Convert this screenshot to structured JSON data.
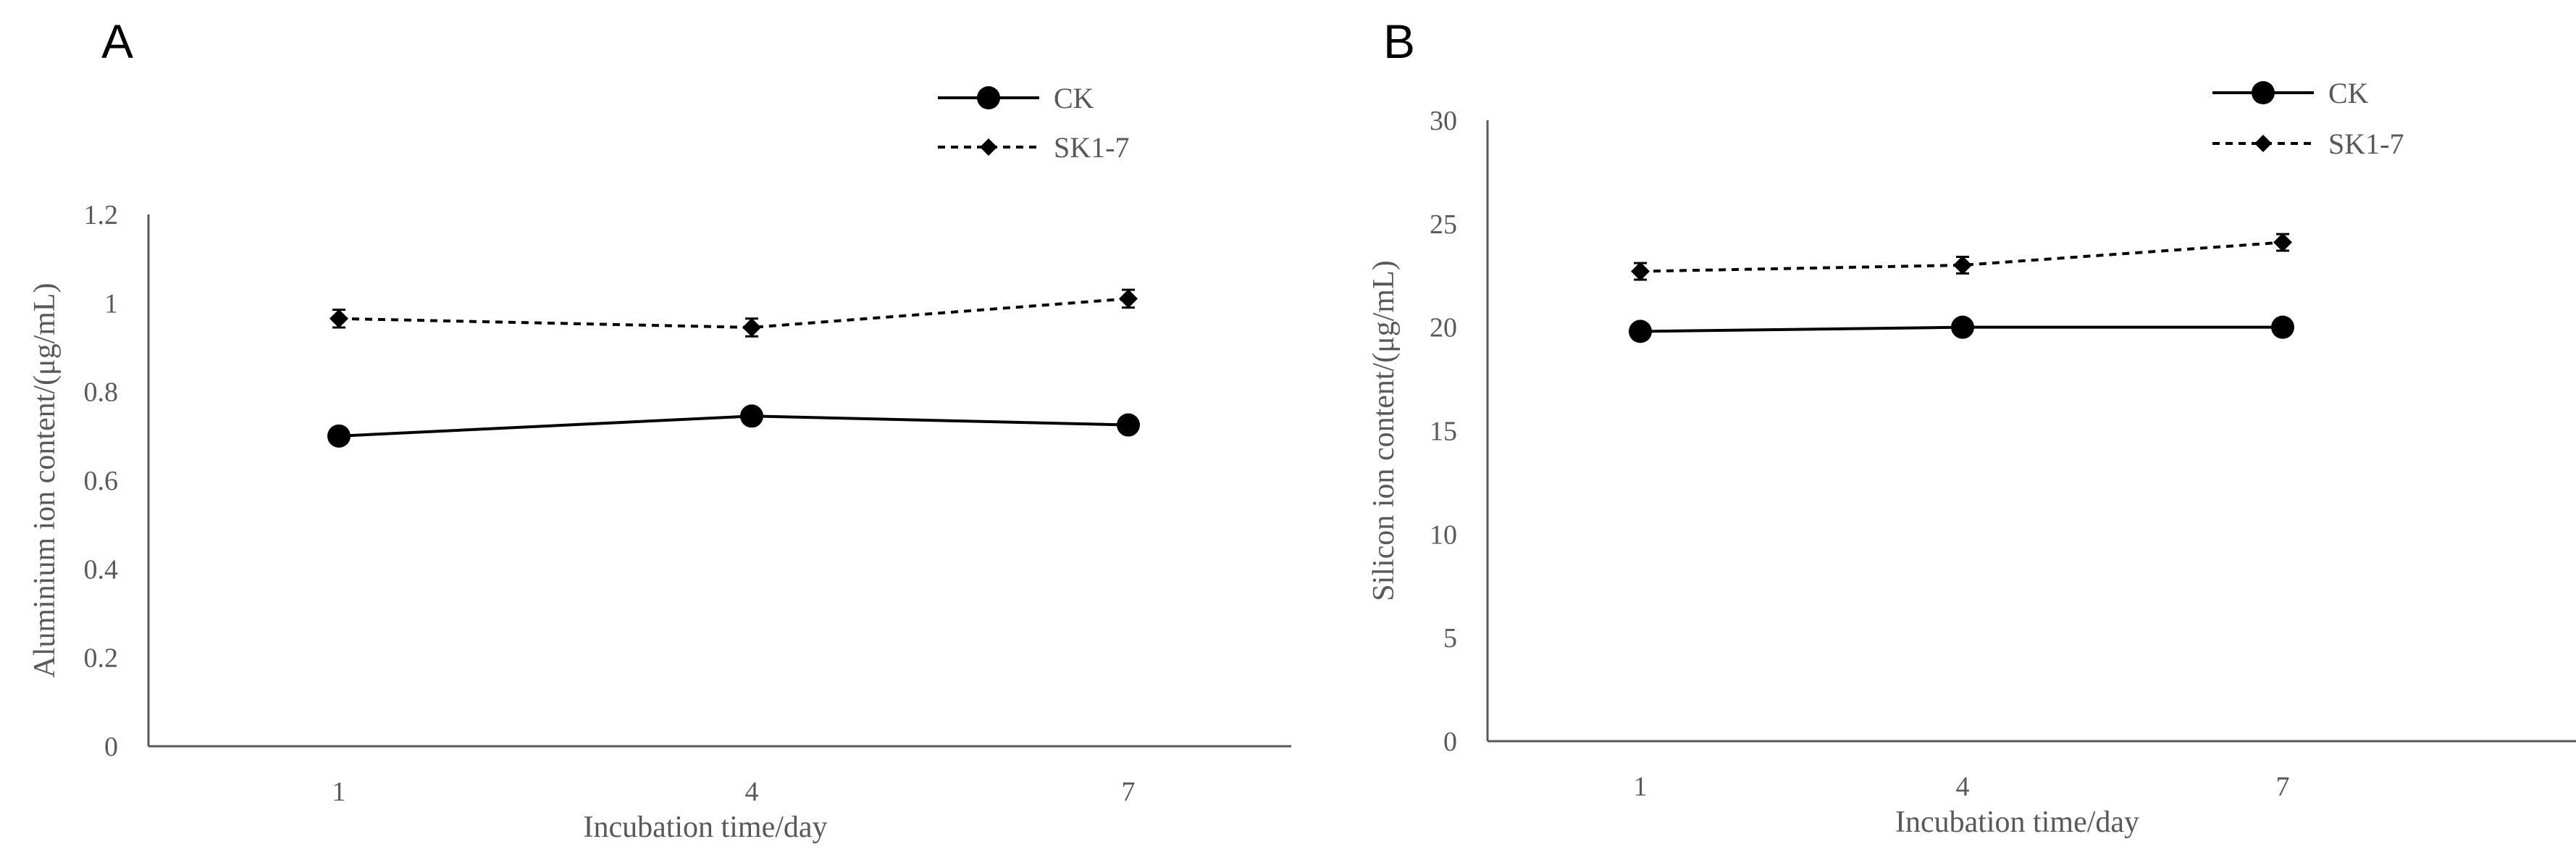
{
  "chart_data": [
    {
      "panel_label": "A",
      "type": "line",
      "xlabel": "Incubation time/day",
      "ylabel": "Aluminium ion content/(μg/mL)",
      "categories": [
        "1",
        "4",
        "7"
      ],
      "ylim": [
        0,
        1.2
      ],
      "yticks": [
        "0",
        "0.2",
        "0.4",
        "0.6",
        "0.8",
        "1",
        "1.2"
      ],
      "legend_position": "top-right",
      "series": [
        {
          "name": "CK",
          "values": [
            0.7,
            0.745,
            0.725
          ],
          "errors": [
            0,
            0,
            0
          ],
          "line_style": "solid",
          "marker": "circle",
          "color": "#000000"
        },
        {
          "name": "SK1-7",
          "values": [
            0.965,
            0.945,
            1.01
          ],
          "errors": [
            0.02,
            0.02,
            0.02
          ],
          "line_style": "dashed",
          "marker": "diamond",
          "color": "#000000"
        }
      ]
    },
    {
      "panel_label": "B",
      "type": "line",
      "xlabel": "Incubation time/day",
      "ylabel": "Silicon ion content/(μg/mL)",
      "categories": [
        "1",
        "4",
        "7"
      ],
      "ylim": [
        0,
        30
      ],
      "yticks": [
        "0",
        "5",
        "10",
        "15",
        "20",
        "25",
        "30"
      ],
      "legend_position": "top-right",
      "series": [
        {
          "name": "CK",
          "values": [
            19.8,
            20.0,
            20.0
          ],
          "errors": [
            0,
            0,
            0
          ],
          "line_style": "solid",
          "marker": "circle",
          "color": "#000000"
        },
        {
          "name": "SK1-7",
          "values": [
            22.7,
            23.0,
            24.1
          ],
          "errors": [
            0.4,
            0.4,
            0.4
          ],
          "line_style": "dashed",
          "marker": "diamond",
          "color": "#000000"
        }
      ]
    }
  ]
}
